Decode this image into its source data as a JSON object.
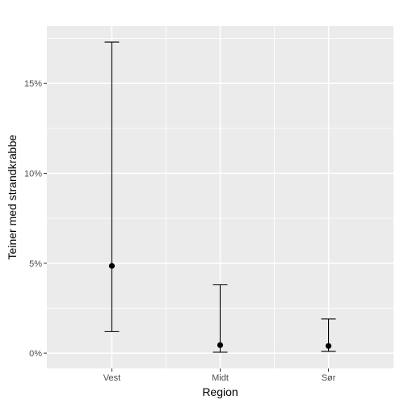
{
  "chart_data": {
    "type": "errorbar",
    "title": "",
    "xlabel": "Region",
    "ylabel": "Teiner med strandkrabbe",
    "categories": [
      "Vest",
      "Midt",
      "Sør"
    ],
    "points": [
      {
        "category": "Vest",
        "estimate": 4.85,
        "lower": 1.2,
        "upper": 17.3
      },
      {
        "category": "Midt",
        "estimate": 0.45,
        "lower": 0.05,
        "upper": 3.8
      },
      {
        "category": "Sør",
        "estimate": 0.4,
        "lower": 0.1,
        "upper": 1.9
      }
    ],
    "y_ticks": [
      0,
      5,
      10,
      15
    ],
    "y_tick_labels": [
      "0%",
      "5%",
      "10%",
      "15%"
    ],
    "ylim": [
      -0.85,
      18.2
    ],
    "y_unit": "%",
    "grid": true,
    "legend": "none",
    "colors": {
      "panel": "#ebebeb",
      "grid": "#ffffff",
      "marks": "#000000",
      "tick_text": "#4d4d4d"
    }
  }
}
